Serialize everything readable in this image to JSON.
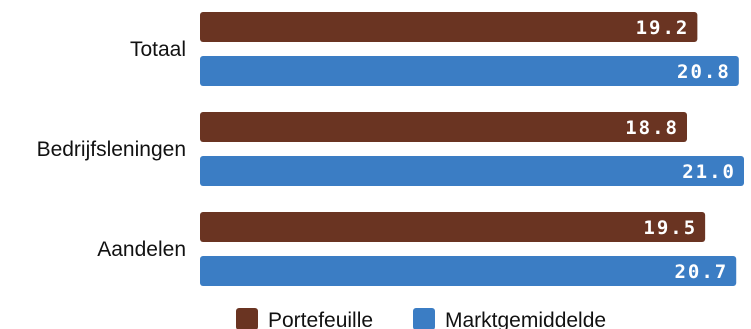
{
  "chart_data": {
    "type": "bar",
    "orientation": "horizontal",
    "categories": [
      "Totaal",
      "Bedrijfsleningen",
      "Aandelen"
    ],
    "series": [
      {
        "name": "Portefeuille",
        "color": "#6a3422",
        "values": [
          19.2,
          18.8,
          19.5
        ],
        "labels": [
          "19.2",
          "18.8",
          "19.5"
        ]
      },
      {
        "name": "Marktgemiddelde",
        "color": "#3b7dc4",
        "values": [
          20.8,
          21.0,
          20.7
        ],
        "labels": [
          "20.8",
          "21.0",
          "20.7"
        ]
      }
    ],
    "xlim": [
      0,
      21.0
    ],
    "grid": false,
    "legend_position": "bottom"
  }
}
